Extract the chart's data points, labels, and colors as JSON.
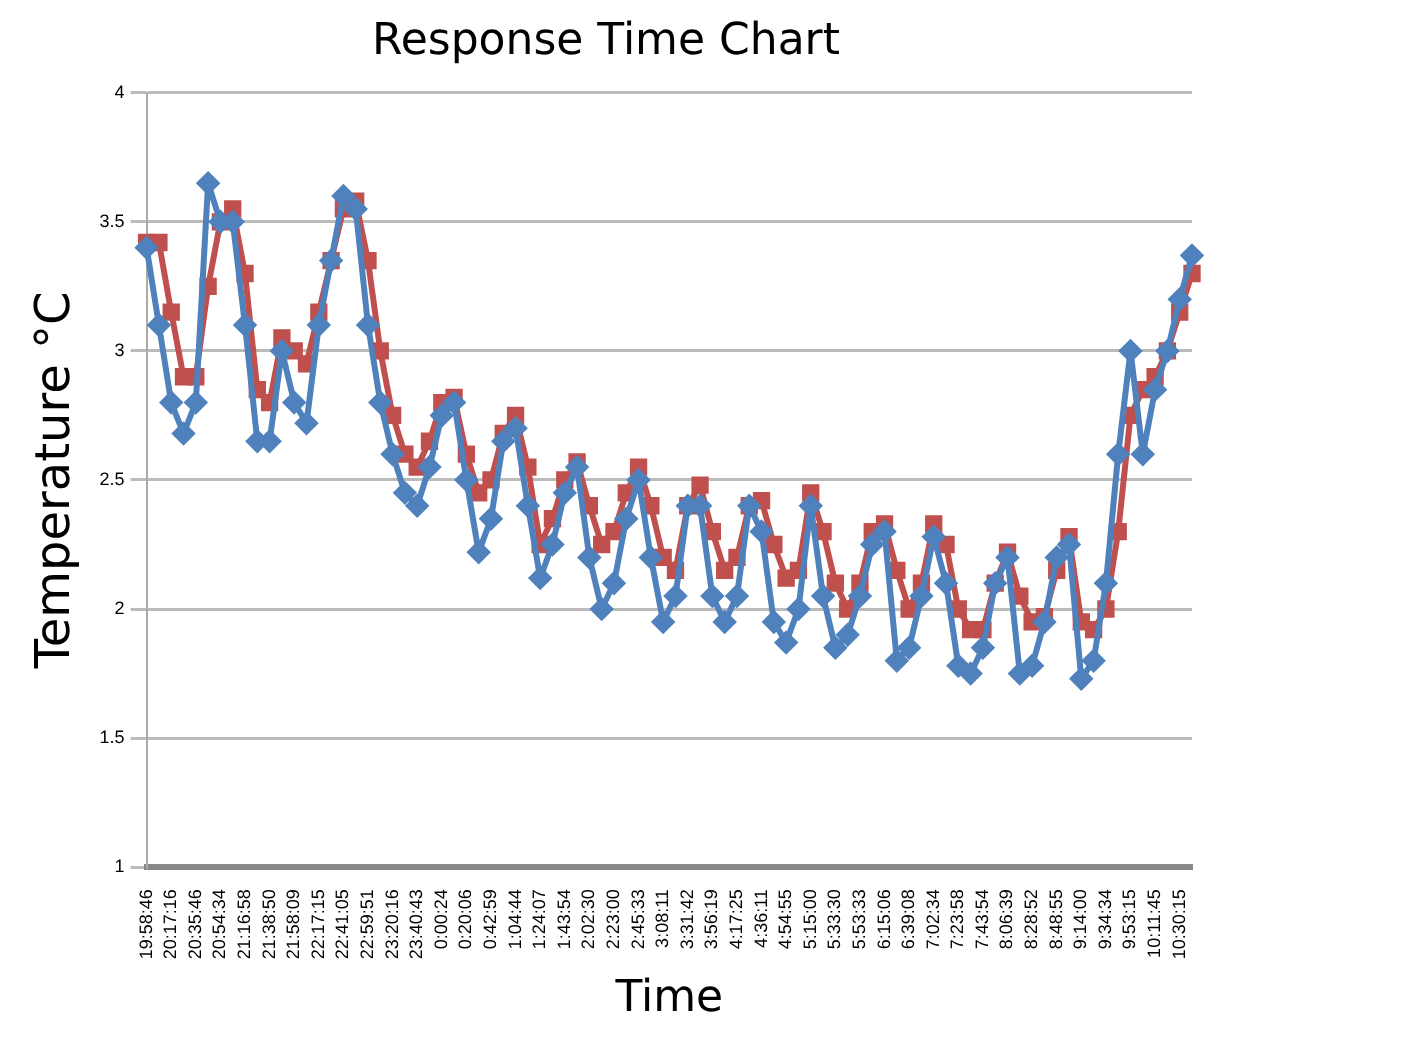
{
  "chart_data": {
    "type": "line",
    "title": "Response Time Chart",
    "xlabel": "Time",
    "ylabel": "Temperature °C",
    "categories": [
      "19:58:46",
      null,
      "20:17:16",
      null,
      "20:35:46",
      null,
      "20:54:34",
      null,
      "21:16:58",
      null,
      "21:38:50",
      null,
      "21:58:09",
      null,
      "22:17:15",
      null,
      "22:41:05",
      null,
      "22:59:51",
      null,
      "23:20:16",
      null,
      "23:40:43",
      null,
      "0:00:24",
      null,
      "0:20:06",
      null,
      "0:42:59",
      null,
      "1:04:44",
      null,
      "1:24:07",
      null,
      "1:43:54",
      null,
      "2:02:30",
      null,
      "2:23:00",
      null,
      "2:45:33",
      null,
      "3:08:11",
      null,
      "3:31:42",
      null,
      "3:56:19",
      null,
      "4:17:25",
      null,
      "4:36:11",
      null,
      "4:54:55",
      null,
      "5:15:00",
      null,
      "5:33:30",
      null,
      "5:53:33",
      null,
      "6:15:06",
      null,
      "6:39:08",
      null,
      "7:02:34",
      null,
      "7:23:58",
      null,
      "7:43:54",
      null,
      "8:06:39",
      null,
      "8:28:52",
      null,
      "8:48:55",
      null,
      "9:14:00",
      null,
      "9:34:34",
      null,
      "9:53:15",
      null,
      "10:11:45",
      null,
      "10:30:15",
      null
    ],
    "series": [
      {
        "color": "#4f81bd",
        "marker": "diamond",
        "values": [
          3.4,
          3.1,
          2.8,
          2.68,
          2.8,
          3.65,
          3.5,
          3.5,
          3.1,
          2.65,
          2.65,
          3.0,
          2.8,
          2.72,
          3.1,
          3.35,
          3.6,
          3.55,
          3.1,
          2.8,
          2.6,
          2.45,
          2.4,
          2.55,
          2.75,
          2.8,
          2.5,
          2.22,
          2.35,
          2.65,
          2.7,
          2.4,
          2.12,
          2.25,
          2.45,
          2.55,
          2.2,
          2.0,
          2.1,
          2.35,
          2.5,
          2.2,
          1.95,
          2.05,
          2.4,
          2.4,
          2.05,
          1.95,
          2.05,
          2.4,
          2.3,
          1.95,
          1.87,
          2.0,
          2.4,
          2.05,
          1.85,
          1.9,
          2.05,
          2.25,
          2.3,
          1.8,
          1.85,
          2.05,
          2.28,
          2.1,
          1.78,
          1.75,
          1.85,
          2.1,
          2.2,
          1.75,
          1.78,
          1.95,
          2.2,
          2.25,
          1.73,
          1.8,
          2.1,
          2.6,
          3.0,
          2.6,
          2.85,
          3.0,
          3.2,
          3.37
        ]
      },
      {
        "color": "#c0504d",
        "marker": "square",
        "values": [
          3.42,
          3.42,
          3.15,
          2.9,
          2.9,
          3.25,
          3.5,
          3.55,
          3.3,
          2.85,
          2.8,
          3.05,
          3.0,
          2.95,
          3.15,
          3.35,
          3.55,
          3.58,
          3.35,
          3.0,
          2.75,
          2.6,
          2.55,
          2.65,
          2.8,
          2.82,
          2.6,
          2.45,
          2.5,
          2.68,
          2.75,
          2.55,
          2.25,
          2.35,
          2.5,
          2.57,
          2.4,
          2.25,
          2.3,
          2.45,
          2.55,
          2.4,
          2.2,
          2.15,
          2.4,
          2.48,
          2.3,
          2.15,
          2.2,
          2.4,
          2.42,
          2.25,
          2.12,
          2.15,
          2.45,
          2.3,
          2.1,
          2.0,
          2.1,
          2.3,
          2.33,
          2.15,
          2.0,
          2.1,
          2.33,
          2.25,
          2.0,
          1.92,
          1.92,
          2.1,
          2.22,
          2.05,
          1.95,
          1.97,
          2.15,
          2.28,
          1.95,
          1.92,
          2.0,
          2.3,
          2.75,
          2.85,
          2.9,
          3.0,
          3.15,
          3.3
        ]
      }
    ],
    "ylim": [
      1,
      4
    ],
    "yticks": [
      1,
      1.5,
      2,
      2.5,
      3,
      3.5,
      4
    ],
    "grid": "y"
  }
}
